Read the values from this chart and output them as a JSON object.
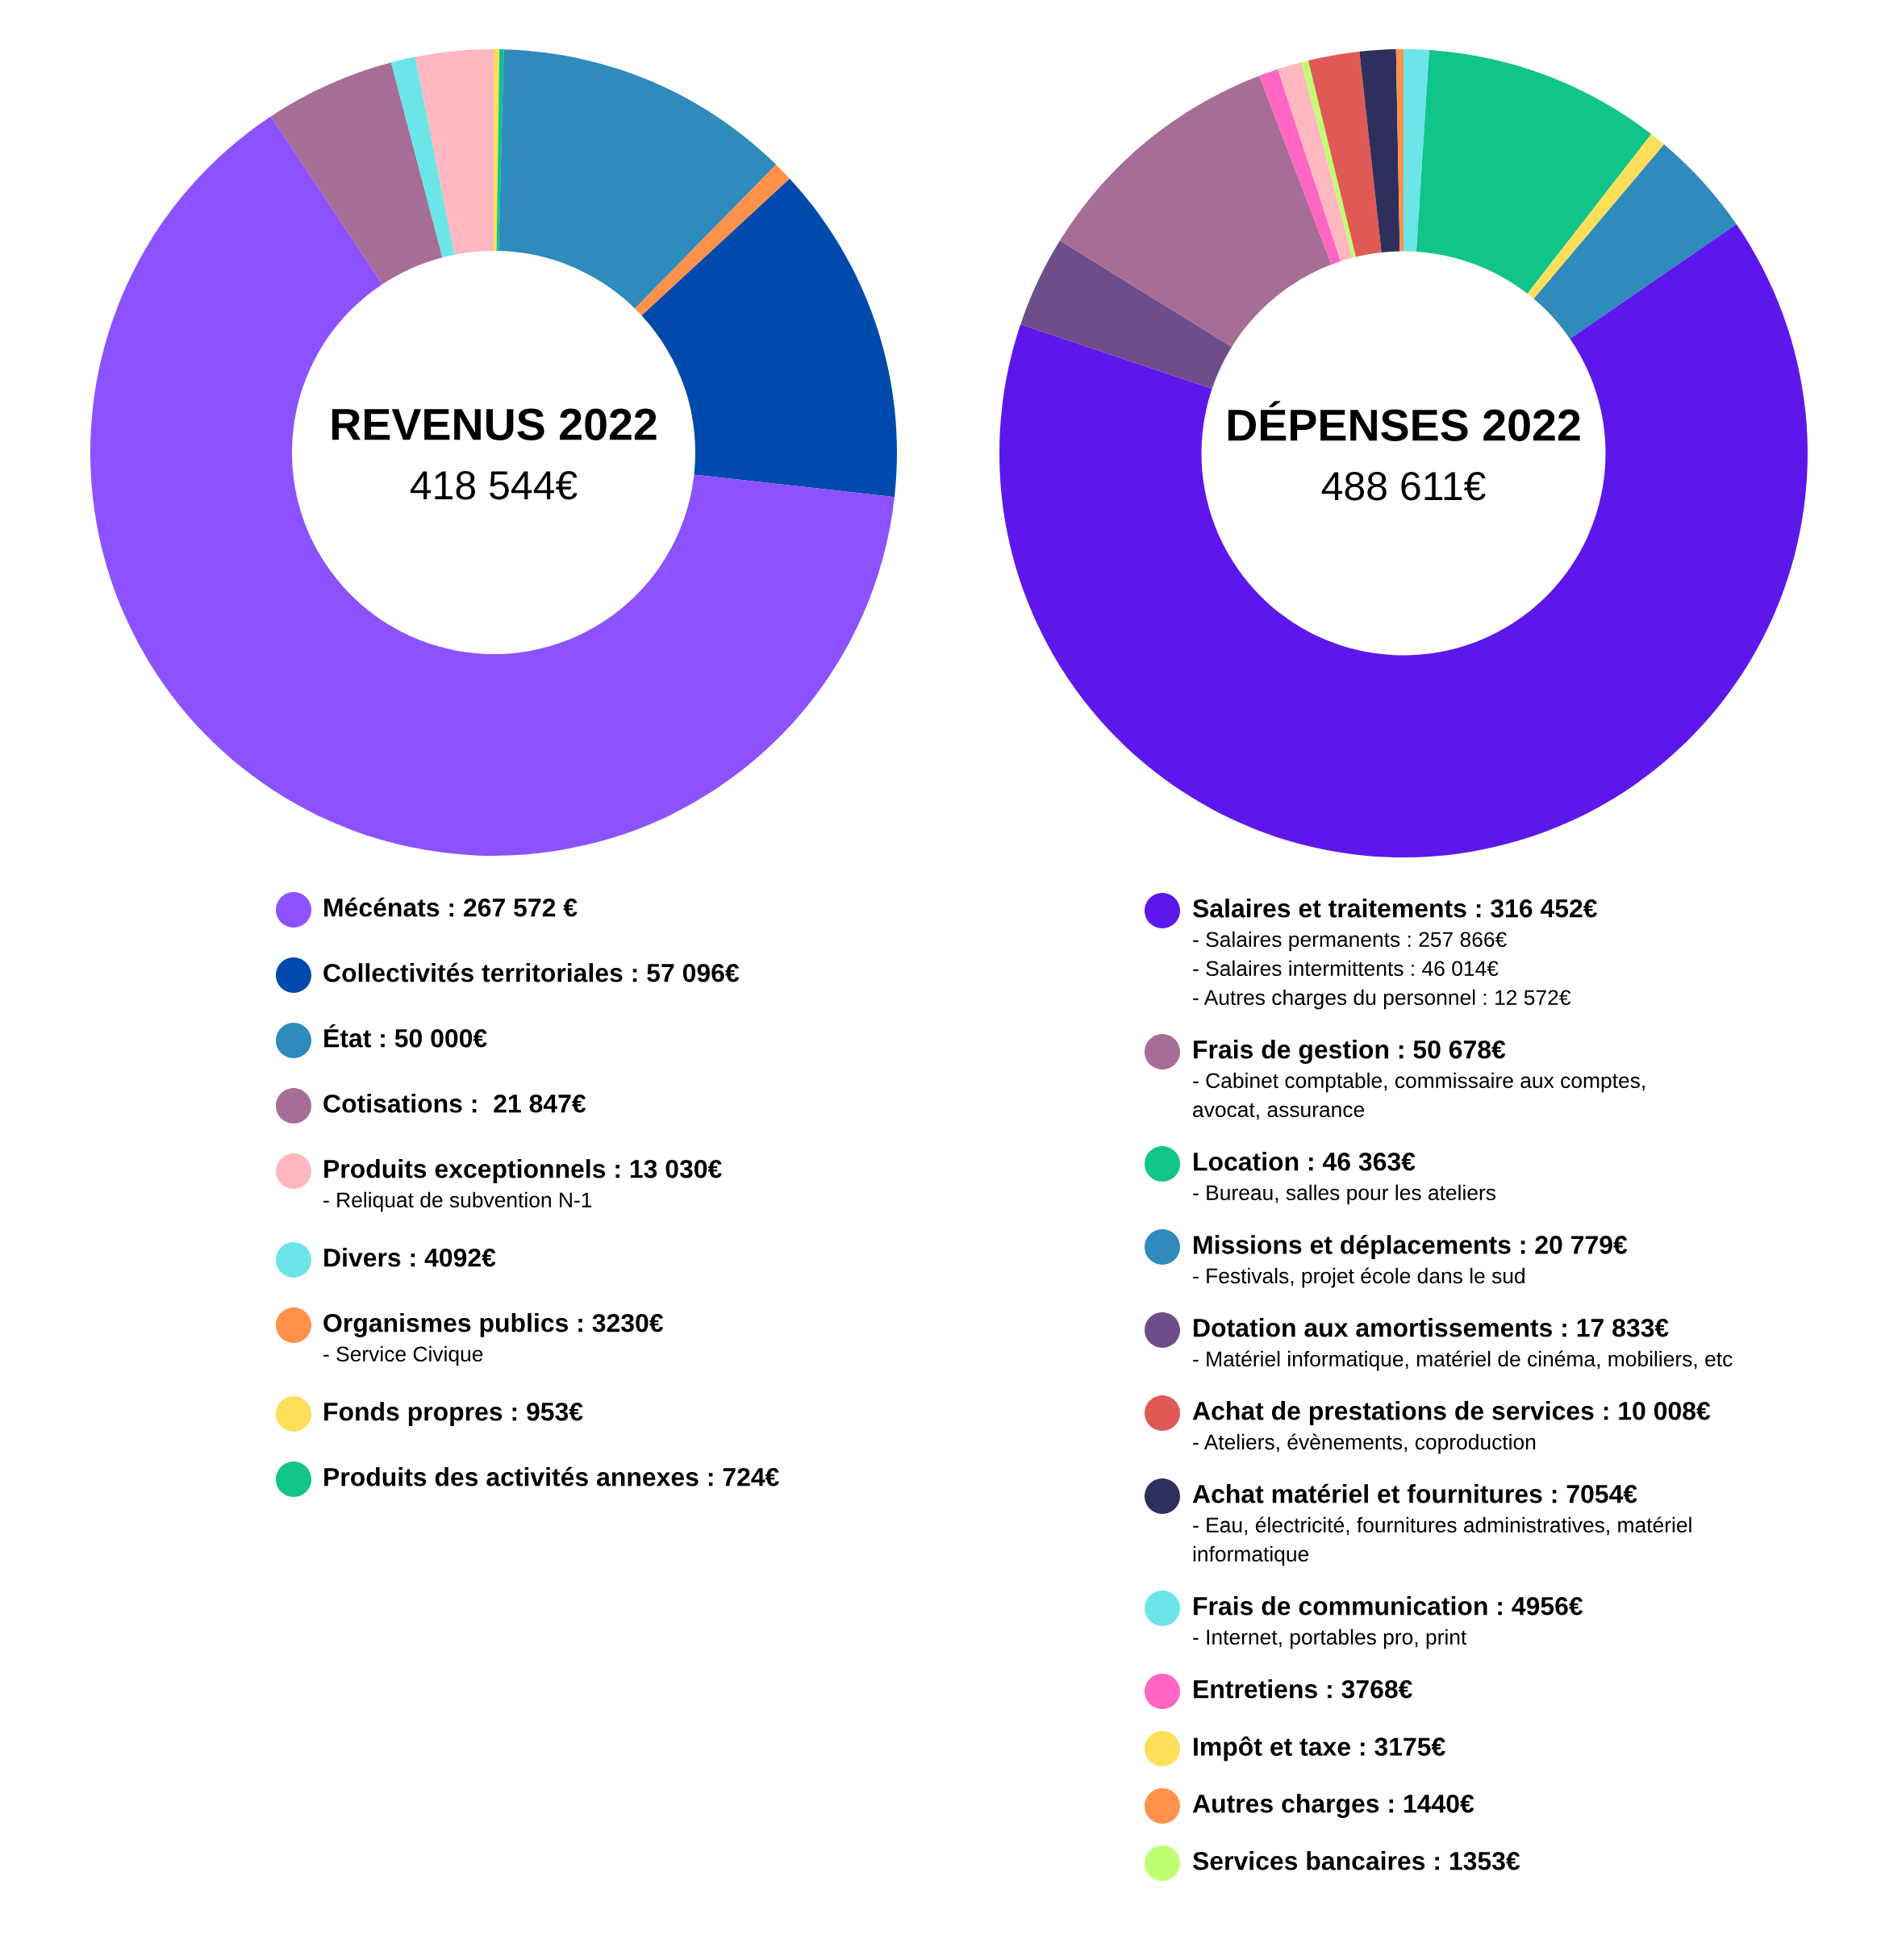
{
  "chart_data": [
    {
      "type": "donut",
      "title": "REVENUS 2022",
      "subtitle": "418 544€",
      "legend": "bottom",
      "categories": [
        "Fonds propres : 953€",
        "Produits des activités annexes : 724€",
        "État : 50 000€",
        "Organismes publics : 3230€\n- Service Civique",
        "Collectivités territoriales : 57 096€",
        "Mécénats : 267 572 €",
        "Cotisations :  21 847€",
        "Divers : 4092€",
        "Produits exceptionnels : 13 030€\n- Reliquat de subvention N-1"
      ],
      "values": [
        953,
        724,
        50000,
        3230,
        57096,
        267572,
        21847,
        4092,
        13030
      ],
      "colors": [
        "#ffde59",
        "#10c48a",
        "#2e8bbc",
        "#ff914d",
        "#004aad",
        "#8c52ff",
        "#a66d96",
        "#6ce5e8",
        "#ffb8bf"
      ]
    },
    {
      "type": "donut",
      "title": "DÉPENSES 2022",
      "subtitle": "488 611€",
      "legend": "bottom",
      "categories": [
        "Frais de communication : 4956€\n- Internet, portables pro, print",
        "Location : 46 363€\n- Bureau, salles pour les ateliers",
        "Impôt et taxe : 3175€",
        "Missions et déplacements : 20 779€\n- Festivals, projet école dans le sud",
        "Salaires et traitements : 316 452€\n- Salaires permanents : 257 866€\n- Salaires intermittents : 46 014€\n- Autres charges du personnel : 12 572€",
        "Dotation aux amortissements : 17 833€\n- Matériel informatique, matériel de cinéma, mobiliers, etc",
        "Frais de gestion : 50 678€\n- Cabinet comptable, commissaire aux comptes,\navocat, assurance",
        "Entretiens : 3768€",
        null,
        "Services bancaires : 1353€",
        "Achat de prestations de services : 10 008€\n- Ateliers, évènements, coproduction",
        "Achat matériel et fournitures : 7054€\n- Eau, électricité, fournitures administratives, matériel\ninformatique",
        "Autres charges : 1440€"
      ],
      "values": [
        4956,
        46363,
        3175,
        20779,
        316452,
        17833,
        50678,
        3768,
        4752,
        1353,
        10008,
        7054,
        1440
      ],
      "colors": [
        "#6ce5e8",
        "#10c48a",
        "#ffde59",
        "#2e8bbc",
        "#5e17eb",
        "#6f4d8a",
        "#a66d96",
        "#ff66c4",
        "#ffb8bf",
        "#c1ff72",
        "#e05a55",
        "#2e2f5c",
        "#ff914d"
      ]
    }
  ]
}
